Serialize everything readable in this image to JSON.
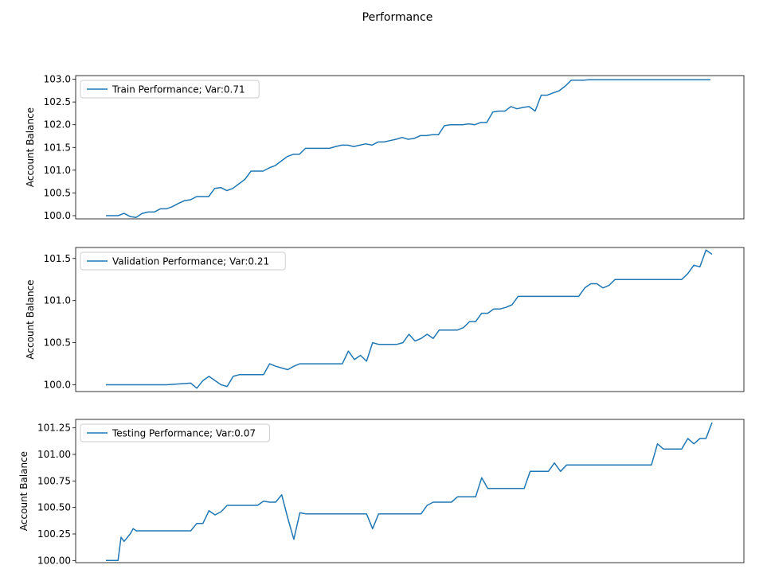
{
  "figure": {
    "title": "Performance"
  },
  "line_color": "#1f77b4",
  "chart_data": [
    {
      "type": "line",
      "ylabel": "Account Balance",
      "ylim": [
        99.93,
        103.08
      ],
      "yticks": [
        100.0,
        100.5,
        101.0,
        101.5,
        102.0,
        102.5,
        103.0
      ],
      "ytick_labels": [
        "100.0",
        "100.5",
        "101.0",
        "101.5",
        "102.0",
        "102.5",
        "103.0"
      ],
      "legend_position": "upper-left",
      "series": [
        {
          "name": "Train Performance; Var:0.71",
          "x": [
            0,
            2,
            3,
            4,
            5,
            6,
            7,
            8,
            9,
            10,
            11,
            12,
            13,
            14,
            15,
            16,
            17,
            18,
            19,
            20,
            21,
            22,
            23,
            24,
            25,
            26,
            27,
            28,
            29,
            30,
            31,
            32,
            33,
            34,
            35,
            36,
            37,
            38,
            39,
            40,
            41,
            42,
            43,
            44,
            45,
            46,
            47,
            48,
            49,
            50,
            51,
            52,
            53,
            54,
            55,
            56,
            57,
            58,
            59,
            60,
            61,
            62,
            63,
            64,
            65,
            66,
            67,
            68,
            69,
            70,
            71,
            72,
            73,
            74,
            75,
            76,
            77,
            78,
            79,
            80,
            81,
            82,
            83,
            84,
            85,
            86,
            87,
            88,
            89,
            90,
            91,
            92,
            93,
            94,
            95,
            96,
            97,
            98,
            99,
            100
          ],
          "y": [
            100.0,
            100.0,
            100.05,
            99.98,
            99.96,
            100.05,
            100.08,
            100.08,
            100.15,
            100.15,
            100.2,
            100.27,
            100.33,
            100.35,
            100.42,
            100.42,
            100.42,
            100.6,
            100.62,
            100.55,
            100.6,
            100.7,
            100.8,
            100.98,
            100.98,
            100.98,
            101.05,
            101.1,
            101.2,
            101.3,
            101.35,
            101.35,
            101.48,
            101.48,
            101.48,
            101.48,
            101.48,
            101.52,
            101.55,
            101.55,
            101.52,
            101.55,
            101.58,
            101.55,
            101.62,
            101.62,
            101.65,
            101.68,
            101.72,
            101.68,
            101.7,
            101.76,
            101.76,
            101.78,
            101.78,
            101.98,
            102.0,
            102.0,
            102.0,
            102.02,
            102.0,
            102.05,
            102.05,
            102.28,
            102.3,
            102.3,
            102.4,
            102.35,
            102.38,
            102.4,
            102.3,
            102.65,
            102.65,
            102.7,
            102.75,
            102.85,
            102.98,
            102.98,
            102.98,
            102.99,
            102.99,
            102.99,
            102.99,
            102.99,
            102.99,
            102.99,
            102.99,
            102.99,
            102.99,
            102.99,
            102.99,
            102.99,
            102.99,
            102.99,
            102.99,
            102.99,
            102.99,
            102.99,
            102.99,
            102.99
          ]
        }
      ]
    },
    {
      "type": "line",
      "ylabel": "Account Balance",
      "ylim": [
        99.92,
        101.63
      ],
      "yticks": [
        100.0,
        100.5,
        101.0,
        101.5
      ],
      "ytick_labels": [
        "100.0",
        "100.5",
        "101.0",
        "101.5"
      ],
      "legend_position": "upper-left",
      "series": [
        {
          "name": "Validation Performance; Var:0.21",
          "x": [
            0,
            5,
            10,
            14,
            15,
            16,
            17,
            18,
            19,
            20,
            21,
            22,
            23,
            25,
            26,
            27,
            28,
            29,
            30,
            31,
            32,
            33,
            34,
            35,
            36,
            37,
            38,
            39,
            40,
            41,
            42,
            43,
            44,
            45,
            46,
            47,
            48,
            49,
            50,
            51,
            52,
            53,
            54,
            55,
            56,
            57,
            58,
            59,
            60,
            61,
            62,
            63,
            64,
            65,
            66,
            67,
            68,
            69,
            70,
            71,
            72,
            73,
            74,
            75,
            76,
            77,
            78,
            79,
            80,
            81,
            82,
            83,
            84,
            85,
            86,
            87,
            88,
            89,
            90,
            91,
            92,
            93,
            94,
            95,
            96,
            97,
            98,
            99,
            100
          ],
          "y": [
            100.0,
            100.0,
            100.0,
            100.02,
            99.96,
            100.05,
            100.1,
            100.05,
            100.0,
            99.98,
            100.1,
            100.12,
            100.12,
            100.12,
            100.12,
            100.25,
            100.22,
            100.2,
            100.18,
            100.22,
            100.25,
            100.25,
            100.25,
            100.25,
            100.25,
            100.25,
            100.25,
            100.25,
            100.4,
            100.3,
            100.35,
            100.28,
            100.5,
            100.48,
            100.48,
            100.48,
            100.48,
            100.5,
            100.6,
            100.52,
            100.55,
            100.6,
            100.55,
            100.65,
            100.65,
            100.65,
            100.65,
            100.68,
            100.75,
            100.75,
            100.85,
            100.85,
            100.9,
            100.9,
            100.92,
            100.95,
            101.05,
            101.05,
            101.05,
            101.05,
            101.05,
            101.05,
            101.05,
            101.05,
            101.05,
            101.05,
            101.05,
            101.15,
            101.2,
            101.2,
            101.15,
            101.18,
            101.25,
            101.25,
            101.25,
            101.25,
            101.25,
            101.25,
            101.25,
            101.25,
            101.25,
            101.25,
            101.25,
            101.25,
            101.32,
            101.42,
            101.4,
            101.6,
            101.55
          ]
        }
      ]
    },
    {
      "type": "line",
      "ylabel": "Account Balance",
      "ylim": [
        99.98,
        101.33
      ],
      "yticks": [
        100.0,
        100.25,
        100.5,
        100.75,
        101.0,
        101.25
      ],
      "ytick_labels": [
        "100.00",
        "100.25",
        "100.50",
        "100.75",
        "101.00",
        "101.25"
      ],
      "legend_position": "upper-left",
      "series": [
        {
          "name": "Testing Performance; Var:0.07",
          "x": [
            0,
            1,
            2,
            2.5,
            3,
            4,
            4.5,
            5,
            6,
            7,
            8,
            9,
            10,
            11,
            12,
            13,
            14,
            15,
            16,
            17,
            18,
            19,
            20,
            21,
            22,
            23,
            24,
            25,
            26,
            27,
            28,
            29,
            30,
            31,
            32,
            33,
            34,
            35,
            36,
            37,
            38,
            39,
            40,
            41,
            42,
            43,
            44,
            45,
            46,
            47,
            48,
            49,
            50,
            51,
            52,
            53,
            54,
            55,
            56,
            57,
            58,
            59,
            60,
            61,
            62,
            63,
            64,
            65,
            66,
            67,
            68,
            69,
            70,
            71,
            72,
            73,
            74,
            75,
            76,
            77,
            78,
            79,
            80,
            81,
            82,
            83,
            84,
            85,
            86,
            87,
            88,
            89,
            90,
            91,
            92,
            93,
            94,
            95,
            96,
            97,
            98,
            99,
            100
          ],
          "y": [
            100.0,
            100.0,
            100.0,
            100.22,
            100.18,
            100.25,
            100.3,
            100.28,
            100.28,
            100.28,
            100.28,
            100.28,
            100.28,
            100.28,
            100.28,
            100.28,
            100.28,
            100.35,
            100.35,
            100.47,
            100.43,
            100.46,
            100.52,
            100.52,
            100.52,
            100.52,
            100.52,
            100.52,
            100.56,
            100.55,
            100.55,
            100.62,
            100.4,
            100.2,
            100.45,
            100.44,
            100.44,
            100.44,
            100.44,
            100.44,
            100.44,
            100.44,
            100.44,
            100.44,
            100.44,
            100.44,
            100.3,
            100.44,
            100.44,
            100.44,
            100.44,
            100.44,
            100.44,
            100.44,
            100.44,
            100.52,
            100.55,
            100.55,
            100.55,
            100.55,
            100.6,
            100.6,
            100.6,
            100.6,
            100.78,
            100.68,
            100.68,
            100.68,
            100.68,
            100.68,
            100.68,
            100.68,
            100.84,
            100.84,
            100.84,
            100.84,
            100.92,
            100.84,
            100.9,
            100.9,
            100.9,
            100.9,
            100.9,
            100.9,
            100.9,
            100.9,
            100.9,
            100.9,
            100.9,
            100.9,
            100.9,
            100.9,
            100.9,
            101.1,
            101.05,
            101.05,
            101.05,
            101.05,
            101.15,
            101.1,
            101.15,
            101.15,
            101.3
          ]
        }
      ]
    }
  ]
}
